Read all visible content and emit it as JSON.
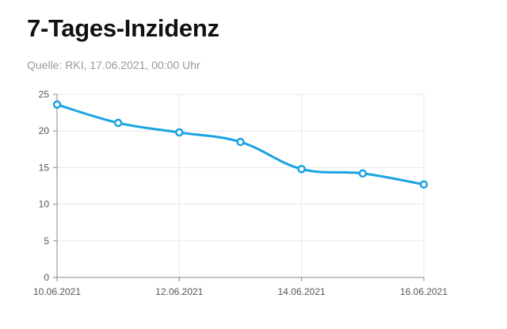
{
  "header": {
    "title": "7-Tages-Inzidenz",
    "subtitle": "Quelle: RKI, 17.06.2021, 00:00 Uhr"
  },
  "colors": {
    "line": "#1aa3e0",
    "grid": "#e8e8e8",
    "axis": "#888888",
    "tick_text": "#555555"
  },
  "chart_data": {
    "type": "line",
    "title": "7-Tages-Inzidenz",
    "subtitle": "Quelle: RKI, 17.06.2021, 00:00 Uhr",
    "xlabel": "",
    "ylabel": "",
    "ylim": [
      0,
      25
    ],
    "y_ticks": [
      "0",
      "5",
      "10",
      "15",
      "20",
      "25"
    ],
    "x_ticks": [
      "10.06.2021",
      "12.06.2021",
      "14.06.2021",
      "16.06.2021"
    ],
    "x": [
      "10.06.2021",
      "11.06.2021",
      "12.06.2021",
      "13.06.2021",
      "14.06.2021",
      "15.06.2021",
      "16.06.2021"
    ],
    "series": [
      {
        "values": [
          23.6,
          21.1,
          19.8,
          18.5,
          14.8,
          14.2,
          12.7
        ]
      }
    ],
    "grid": true,
    "legend": "none"
  }
}
